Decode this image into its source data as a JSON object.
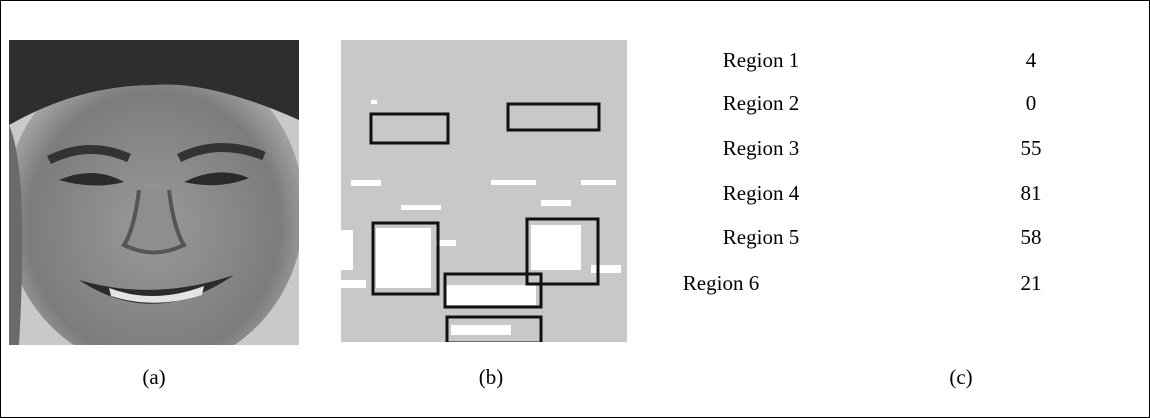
{
  "figure": {
    "panels": [
      {
        "label": "(a)"
      },
      {
        "label": "(b)"
      },
      {
        "label": "(c)"
      }
    ],
    "table": {
      "rows": [
        [
          "Region 1",
          4
        ],
        [
          "Region 2",
          0
        ],
        [
          "Region 3",
          55
        ],
        [
          "Region 4",
          81
        ],
        [
          "Region 5",
          58
        ],
        [
          "Region 6",
          21
        ]
      ]
    }
  }
}
